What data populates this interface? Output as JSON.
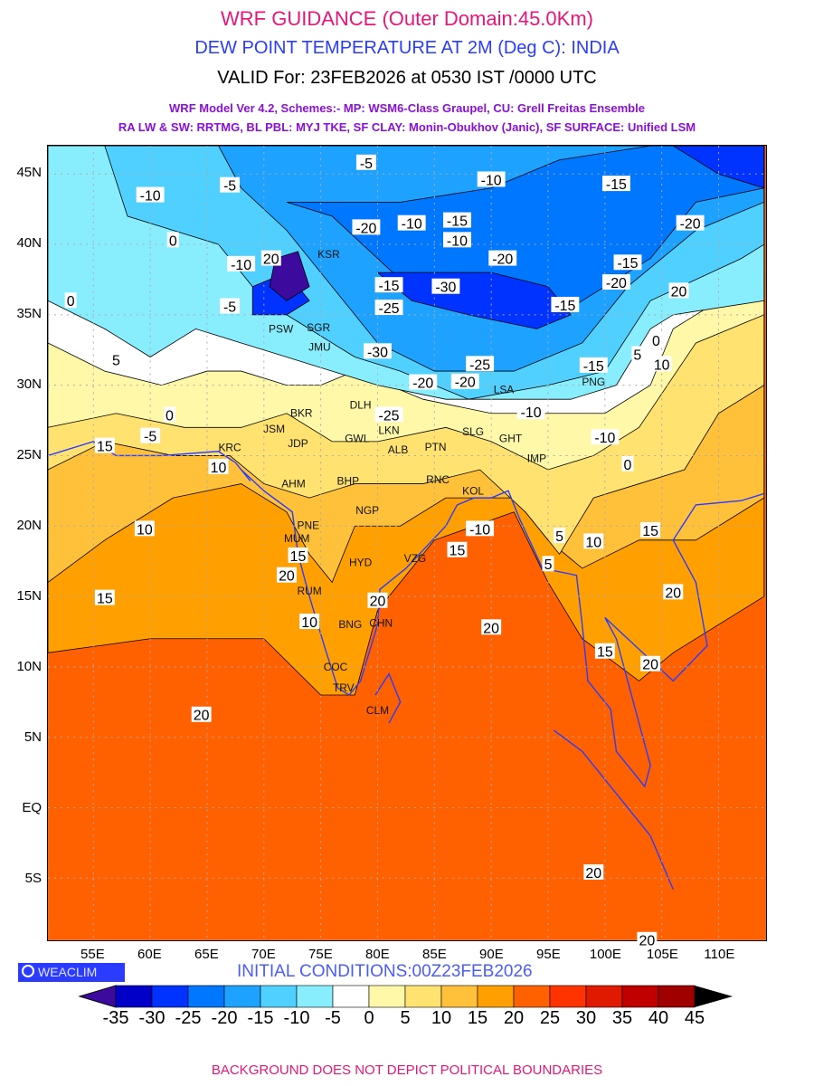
{
  "header": {
    "title": "WRF GUIDANCE (Outer Domain:45.0Km)",
    "subtitle": "DEW POINT TEMPERATURE AT 2M (Deg C): INDIA",
    "valid": "VALID For: 23FEB2026 at 0530 IST /0000 UTC",
    "model_line1": "WRF Model Ver 4.2, Schemes:- MP: WSM6-Class Graupel, CU: Grell Freitas Ensemble",
    "model_line2": "RA LW & SW: RRTMG, BL PBL: MYJ TKE, SF CLAY: Monin-Obukhov (Janic), SF SURFACE: Unified LSM"
  },
  "axes": {
    "lat_labels": [
      "45N",
      "40N",
      "35N",
      "30N",
      "25N",
      "20N",
      "15N",
      "10N",
      "5N",
      "EQ",
      "5S"
    ],
    "lat_values": [
      45,
      40,
      35,
      30,
      25,
      20,
      15,
      10,
      5,
      0,
      -5
    ],
    "lon_labels": [
      "55E",
      "60E",
      "65E",
      "70E",
      "75E",
      "80E",
      "85E",
      "90E",
      "95E",
      "100E",
      "105E",
      "110E"
    ],
    "lon_values": [
      55,
      60,
      65,
      70,
      75,
      80,
      85,
      90,
      95,
      100,
      105,
      110
    ]
  },
  "contour_labels": [
    {
      "t": "-5",
      "lon": 79,
      "lat": 45.8
    },
    {
      "t": "-10",
      "lon": 60,
      "lat": 43.5
    },
    {
      "t": "-5",
      "lon": 67,
      "lat": 44.2
    },
    {
      "t": "-10",
      "lon": 90,
      "lat": 44.6
    },
    {
      "t": "-15",
      "lon": 101,
      "lat": 44.3
    },
    {
      "t": "-20",
      "lon": 107.5,
      "lat": 41.5
    },
    {
      "t": "-20",
      "lon": 79,
      "lat": 41.2
    },
    {
      "t": "-10",
      "lon": 83,
      "lat": 41.5
    },
    {
      "t": "-15",
      "lon": 87,
      "lat": 41.7
    },
    {
      "t": "-10",
      "lon": 87,
      "lat": 40.3
    },
    {
      "t": "-20",
      "lon": 91,
      "lat": 39
    },
    {
      "t": "0",
      "lon": 62,
      "lat": 40.3
    },
    {
      "t": "-10",
      "lon": 68,
      "lat": 38.6
    },
    {
      "t": "20",
      "lon": 70,
      "lat": 39
    },
    {
      "t": "-15",
      "lon": 81,
      "lat": 37.1
    },
    {
      "t": "-30",
      "lon": 86,
      "lat": 37
    },
    {
      "t": "-25",
      "lon": 81,
      "lat": 35.5
    },
    {
      "t": "-15",
      "lon": 96.5,
      "lat": 35.7
    },
    {
      "t": "-20",
      "lon": 101,
      "lat": 37.3
    },
    {
      "t": "-15",
      "lon": 102,
      "lat": 38.7
    },
    {
      "t": "20",
      "lon": 106.5,
      "lat": 36.7
    },
    {
      "t": "0",
      "lon": 53,
      "lat": 36
    },
    {
      "t": "-5",
      "lon": 67,
      "lat": 35.6
    },
    {
      "t": "-30",
      "lon": 80,
      "lat": 32.4
    },
    {
      "t": "-25",
      "lon": 89,
      "lat": 31.5
    },
    {
      "t": "-20",
      "lon": 87.7,
      "lat": 30.7
    },
    {
      "t": "-20",
      "lon": 84,
      "lat": 30.2
    },
    {
      "t": "-15",
      "lon": 99,
      "lat": 31.4
    },
    {
      "t": "-25",
      "lon": 81,
      "lat": 27.9
    },
    {
      "t": "-10",
      "lon": 93.5,
      "lat": 28.1
    },
    {
      "t": "-10",
      "lon": 100,
      "lat": 26.3
    },
    {
      "t": "5",
      "lon": 57,
      "lat": 31.8
    },
    {
      "t": "0",
      "lon": 61.7,
      "lat": 27.9
    },
    {
      "t": "-5",
      "lon": 60,
      "lat": 26.4
    },
    {
      "t": "15",
      "lon": 56,
      "lat": 25.7
    },
    {
      "t": "10",
      "lon": 66,
      "lat": 24.2
    },
    {
      "t": "10",
      "lon": 59.5,
      "lat": 19.8
    },
    {
      "t": "15",
      "lon": 56,
      "lat": 14.9
    },
    {
      "t": "15",
      "lon": 73,
      "lat": 17.9
    },
    {
      "t": "20",
      "lon": 72,
      "lat": 16.5
    },
    {
      "t": "10",
      "lon": 74,
      "lat": 13.2
    },
    {
      "t": "20",
      "lon": 80,
      "lat": 14.7
    },
    {
      "t": "20",
      "lon": 90,
      "lat": 12.8
    },
    {
      "t": "15",
      "lon": 87,
      "lat": 18.3
    },
    {
      "t": "-10",
      "lon": 89,
      "lat": 19.8
    },
    {
      "t": "5",
      "lon": 95,
      "lat": 17.3
    },
    {
      "t": "5",
      "lon": 96,
      "lat": 19.3
    },
    {
      "t": "10",
      "lon": 99,
      "lat": 18.9
    },
    {
      "t": "15",
      "lon": 104,
      "lat": 19.7
    },
    {
      "t": "20",
      "lon": 106,
      "lat": 15.3
    },
    {
      "t": "15",
      "lon": 100,
      "lat": 11.1
    },
    {
      "t": "20",
      "lon": 104,
      "lat": 10.2
    },
    {
      "t": "20",
      "lon": 64.5,
      "lat": 6.6
    },
    {
      "t": "20",
      "lon": 99,
      "lat": -4.6
    },
    {
      "t": "20",
      "lon": 103.7,
      "lat": -9.4
    },
    {
      "t": "0",
      "lon": 104.5,
      "lat": 33.2
    },
    {
      "t": "10",
      "lon": 105,
      "lat": 31.5
    },
    {
      "t": "5",
      "lon": 103.5,
      "lat": 32.2
    },
    {
      "t": "0",
      "lon": 102,
      "lat": 24.4
    }
  ],
  "cities": [
    {
      "t": "KSR",
      "lon": 75.7,
      "lat": 39.3
    },
    {
      "t": "PSW",
      "lon": 71.5,
      "lat": 34
    },
    {
      "t": "SGR",
      "lon": 74.8,
      "lat": 34.1
    },
    {
      "t": "JMU",
      "lon": 74.9,
      "lat": 32.7
    },
    {
      "t": "DLH",
      "lon": 78.5,
      "lat": 28.6
    },
    {
      "t": "BKR",
      "lon": 73.3,
      "lat": 28
    },
    {
      "t": "JSM",
      "lon": 70.9,
      "lat": 26.9
    },
    {
      "t": "JDP",
      "lon": 73,
      "lat": 26.3
    },
    {
      "t": "LKN",
      "lon": 81,
      "lat": 26.8
    },
    {
      "t": "GWL",
      "lon": 78.2,
      "lat": 26.2
    },
    {
      "t": "ALB",
      "lon": 81.8,
      "lat": 25.4
    },
    {
      "t": "PTN",
      "lon": 85.1,
      "lat": 25.6
    },
    {
      "t": "KRC",
      "lon": 67,
      "lat": 24.8
    },
    {
      "t": "AHM",
      "lon": 72.6,
      "lat": 23
    },
    {
      "t": "BHP",
      "lon": 77.4,
      "lat": 23.2
    },
    {
      "t": "RNC",
      "lon": 85.3,
      "lat": 23.3
    },
    {
      "t": "KOL",
      "lon": 88.4,
      "lat": 22.5
    },
    {
      "t": "NGP",
      "lon": 79.1,
      "lat": 21.1
    },
    {
      "t": "MUM",
      "lon": 72.9,
      "lat": 19.1
    },
    {
      "t": "PNE",
      "lon": 73.9,
      "lat": 18.5
    },
    {
      "t": "HYD",
      "lon": 78.5,
      "lat": 17.4
    },
    {
      "t": "VZG",
      "lon": 83.3,
      "lat": 17.7
    },
    {
      "t": "RUM",
      "lon": 74,
      "lat": 15.4
    },
    {
      "t": "BNG",
      "lon": 77.6,
      "lat": 13
    },
    {
      "t": "CHN",
      "lon": 80.3,
      "lat": 13.1
    },
    {
      "t": "COC",
      "lon": 76.3,
      "lat": 10
    },
    {
      "t": "TRV",
      "lon": 77,
      "lat": 8.5
    },
    {
      "t": "CLM",
      "lon": 80,
      "lat": 6.9
    },
    {
      "t": "LSA",
      "lon": 91.1,
      "lat": 29.7
    },
    {
      "t": "PNG",
      "lon": 99,
      "lat": 31
    },
    {
      "t": "SLG",
      "lon": 88.4,
      "lat": 26.7
    },
    {
      "t": "GHT",
      "lon": 91.7,
      "lat": 26.2
    },
    {
      "t": "IMP",
      "lon": 94,
      "lat": 24.8
    }
  ],
  "logo": {
    "text": "WEACLIM"
  },
  "initial_conditions": "INITIAL CONDITIONS:00Z23FEB2026",
  "colorbar": {
    "labels": [
      "-35",
      "-30",
      "-25",
      "-20",
      "-15",
      "-10",
      "-5",
      "0",
      "5",
      "10",
      "15",
      "20",
      "25",
      "30",
      "35",
      "40",
      "45"
    ],
    "colors": [
      "#0000c8",
      "#0033ff",
      "#0077ff",
      "#1ea2ff",
      "#50d0ff",
      "#88eefe",
      "#ffffff",
      "#fff8a8",
      "#ffe270",
      "#ffc03a",
      "#ffa000",
      "#ff6000",
      "#ff3300",
      "#e01a00",
      "#c00000",
      "#a00000"
    ],
    "under_color": "#3d0a9e",
    "over_color": "#000000"
  },
  "footer": "BACKGROUND DOES NOT DEPICT POLITICAL BOUNDARIES"
}
